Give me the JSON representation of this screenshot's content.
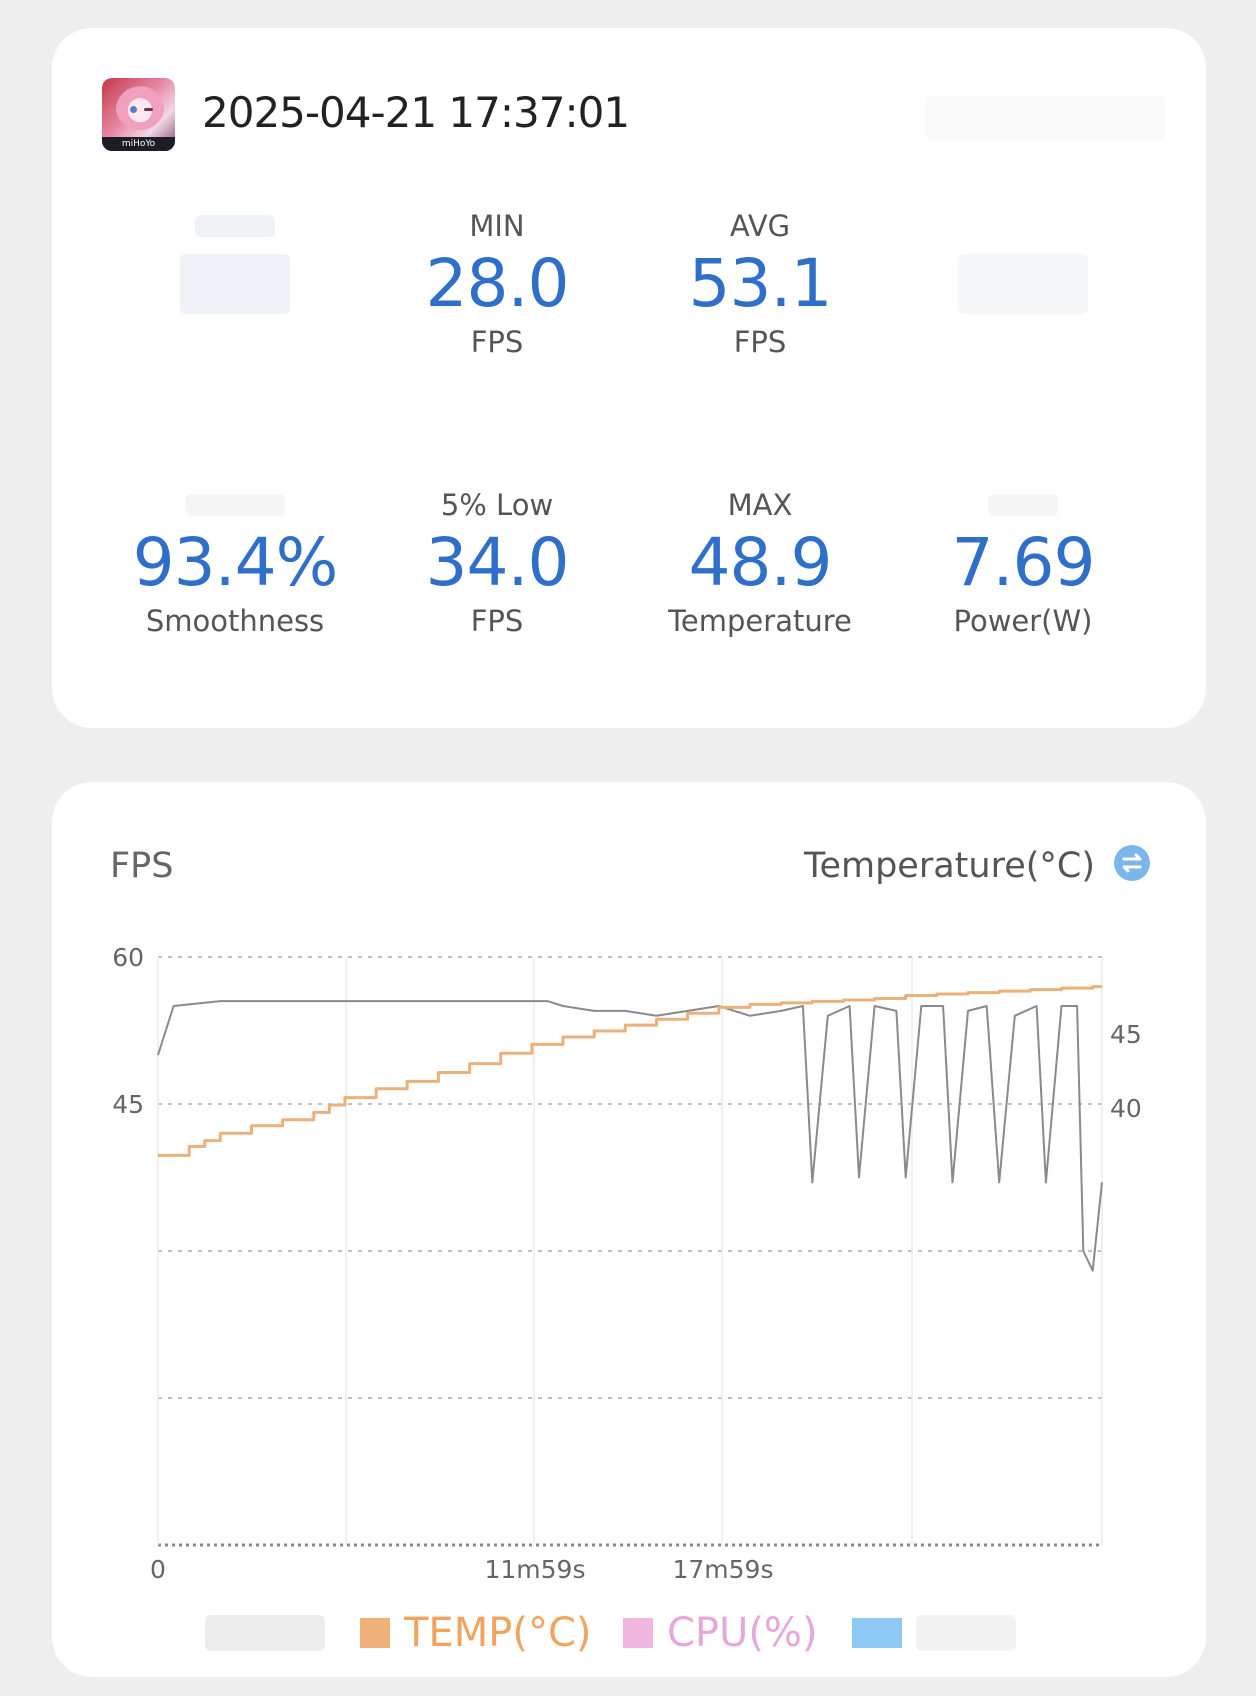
{
  "header": {
    "app_icon_text": "miHoYo",
    "timestamp": "2025-04-21 17:37:01"
  },
  "metrics": [
    {
      "label": "",
      "value": "",
      "unit": "",
      "blurred": true
    },
    {
      "label": "MIN",
      "value": "28.0",
      "unit": "FPS"
    },
    {
      "label": "AVG",
      "value": "53.1",
      "unit": "FPS"
    },
    {
      "label": "",
      "value": "",
      "unit": "",
      "blurred": true
    },
    {
      "label": "",
      "value": "93.4%",
      "unit": "Smoothness",
      "label_blurred": true
    },
    {
      "label": "5% Low",
      "value": "34.0",
      "unit": "FPS"
    },
    {
      "label": "MAX",
      "value": "48.9",
      "unit": "Temperature"
    },
    {
      "label": "",
      "value": "7.69",
      "unit": "Power(W)",
      "label_blurred": true
    }
  ],
  "chart_header": {
    "left_title": "FPS",
    "right_title": "Temperature(°C)",
    "swap_icon": "swap-icon"
  },
  "legend": [
    {
      "label": "",
      "color": "#d9d9d9",
      "blurred": true
    },
    {
      "label": "TEMP(°C)",
      "color": "#f0b27a"
    },
    {
      "label": "CPU(%)",
      "color": "#f1b6df"
    },
    {
      "label": "",
      "color": "#8ec9f5",
      "blurred": true
    }
  ],
  "chart_data": {
    "type": "line",
    "x_tick_labels": [
      "0",
      "11m59s",
      "17m59s"
    ],
    "y_left": {
      "label": "FPS",
      "tick_labels": [
        "60",
        "45"
      ]
    },
    "y_right": {
      "label": "Temperature(°C)",
      "tick_labels": [
        "45",
        "40"
      ]
    },
    "grid": true,
    "series": [
      {
        "name": "",
        "axis": "left",
        "color": "#8a8a8a",
        "x_minutes": [
          0,
          0.5,
          2,
          4,
          6,
          8,
          10,
          11.5,
          12,
          12.5,
          13,
          14,
          15,
          16,
          17,
          18,
          19,
          20,
          20.7,
          21,
          21.5,
          22.2,
          22.5,
          23,
          23.7,
          24,
          24.5,
          25.2,
          25.5,
          26,
          26.6,
          27,
          27.5,
          28.2,
          28.5,
          29,
          29.5,
          29.7,
          30,
          30.3
        ],
        "values": [
          50,
          55,
          55.5,
          55.5,
          55.5,
          55.5,
          55.5,
          55.5,
          55.5,
          55.5,
          55,
          54.5,
          54.5,
          54,
          54.5,
          55,
          54,
          54.5,
          55,
          37,
          54,
          55,
          37.5,
          55,
          54.5,
          37.5,
          55,
          55,
          37,
          54.5,
          55,
          37,
          54,
          55,
          37,
          55,
          55,
          30,
          28,
          37
        ]
      },
      {
        "name": "TEMP(°C)",
        "axis": "right",
        "color": "#ecb07a",
        "x_minutes": [
          0,
          1,
          1.5,
          2,
          3,
          4,
          5,
          5.5,
          6,
          7,
          8,
          9,
          10,
          11,
          12,
          13,
          14,
          15,
          16,
          17,
          18,
          19,
          20,
          21,
          22,
          23,
          24,
          25,
          26,
          27,
          28,
          29,
          30,
          30.3
        ],
        "values": [
          36.8,
          37.4,
          37.8,
          38.3,
          38.8,
          39.2,
          39.7,
          40.2,
          40.7,
          41.3,
          41.8,
          42.4,
          43,
          43.7,
          44.3,
          44.8,
          45.2,
          45.6,
          46.0,
          46.4,
          46.8,
          47.0,
          47.1,
          47.2,
          47.3,
          47.4,
          47.6,
          47.7,
          47.8,
          47.9,
          48.0,
          48.1,
          48.2,
          48.2
        ]
      }
    ]
  }
}
